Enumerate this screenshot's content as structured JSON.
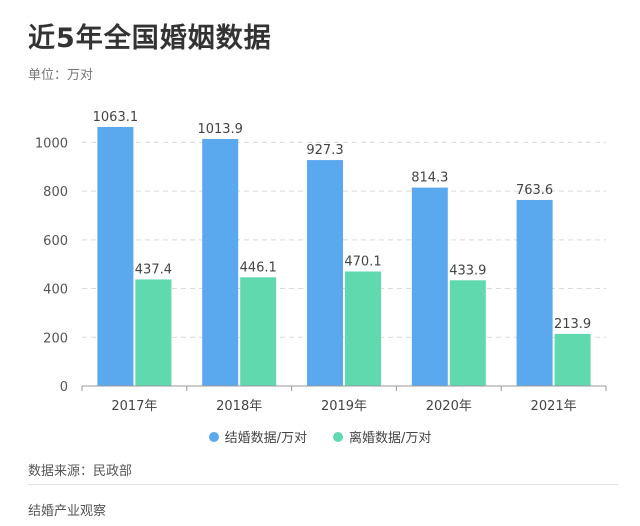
{
  "title": "近5年全国婚姻数据",
  "unit": "单位：万对",
  "source": "数据来源：民政部",
  "footer": "结婚产业观察",
  "colors": {
    "marriage": "#5aa8ee",
    "divorce": "#5fd9ad"
  },
  "chart_data": {
    "type": "bar",
    "title": "近5年全国婚姻数据",
    "xlabel": "",
    "ylabel": "",
    "ylim": [
      0,
      1100
    ],
    "yticks": [
      0,
      200,
      400,
      600,
      800,
      1000
    ],
    "categories": [
      "2017年",
      "2018年",
      "2019年",
      "2020年",
      "2021年"
    ],
    "series": [
      {
        "name": "结婚数据/万对",
        "values": [
          1063.1,
          1013.9,
          927.3,
          814.3,
          763.6
        ]
      },
      {
        "name": "离婚数据/万对",
        "values": [
          437.4,
          446.1,
          470.1,
          433.9,
          213.9
        ]
      }
    ],
    "grid": true,
    "legend": "bottom"
  }
}
